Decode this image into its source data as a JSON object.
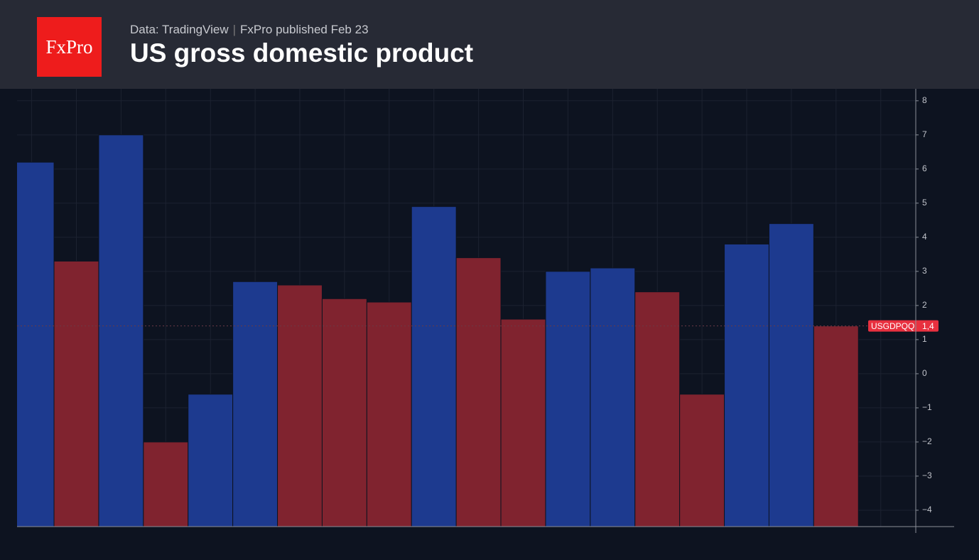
{
  "header": {
    "logo": "FxPro",
    "source": "Data: TradingView",
    "published": "FxPro published Feb 23"
  },
  "chart_data": {
    "type": "bar",
    "title": "US gross domestic product",
    "categories": [
      null,
      null,
      null,
      null,
      null,
      null,
      null,
      null,
      null,
      null,
      null,
      null,
      null,
      null,
      null,
      null,
      null,
      null,
      null
    ],
    "series": [
      {
        "name": "USGDPQQ",
        "values": [
          6.2,
          3.3,
          7.0,
          -2.0,
          -0.6,
          2.7,
          2.6,
          2.2,
          2.1,
          4.9,
          3.4,
          1.6,
          3.0,
          3.1,
          2.4,
          -0.6,
          3.8,
          4.4,
          1.4
        ],
        "colors": [
          "#1d3a8f",
          "#80232f",
          "#1d3a8f",
          "#80232f",
          "#1d3a8f",
          "#1d3a8f",
          "#80232f",
          "#80232f",
          "#80232f",
          "#1d3a8f",
          "#80232f",
          "#80232f",
          "#1d3a8f",
          "#1d3a8f",
          "#80232f",
          "#80232f",
          "#1d3a8f",
          "#1d3a8f",
          "#80232f"
        ],
        "last_value_label": "1,4"
      }
    ],
    "ylim": [
      -4.48,
      8.35
    ],
    "yticks": [
      {
        "value": -4,
        "label": "−4"
      },
      {
        "value": -3,
        "label": "−3"
      },
      {
        "value": -2,
        "label": "−2"
      },
      {
        "value": -1,
        "label": "−1"
      },
      0,
      1,
      2,
      3,
      4,
      5,
      6,
      7,
      8
    ],
    "grid": true
  }
}
